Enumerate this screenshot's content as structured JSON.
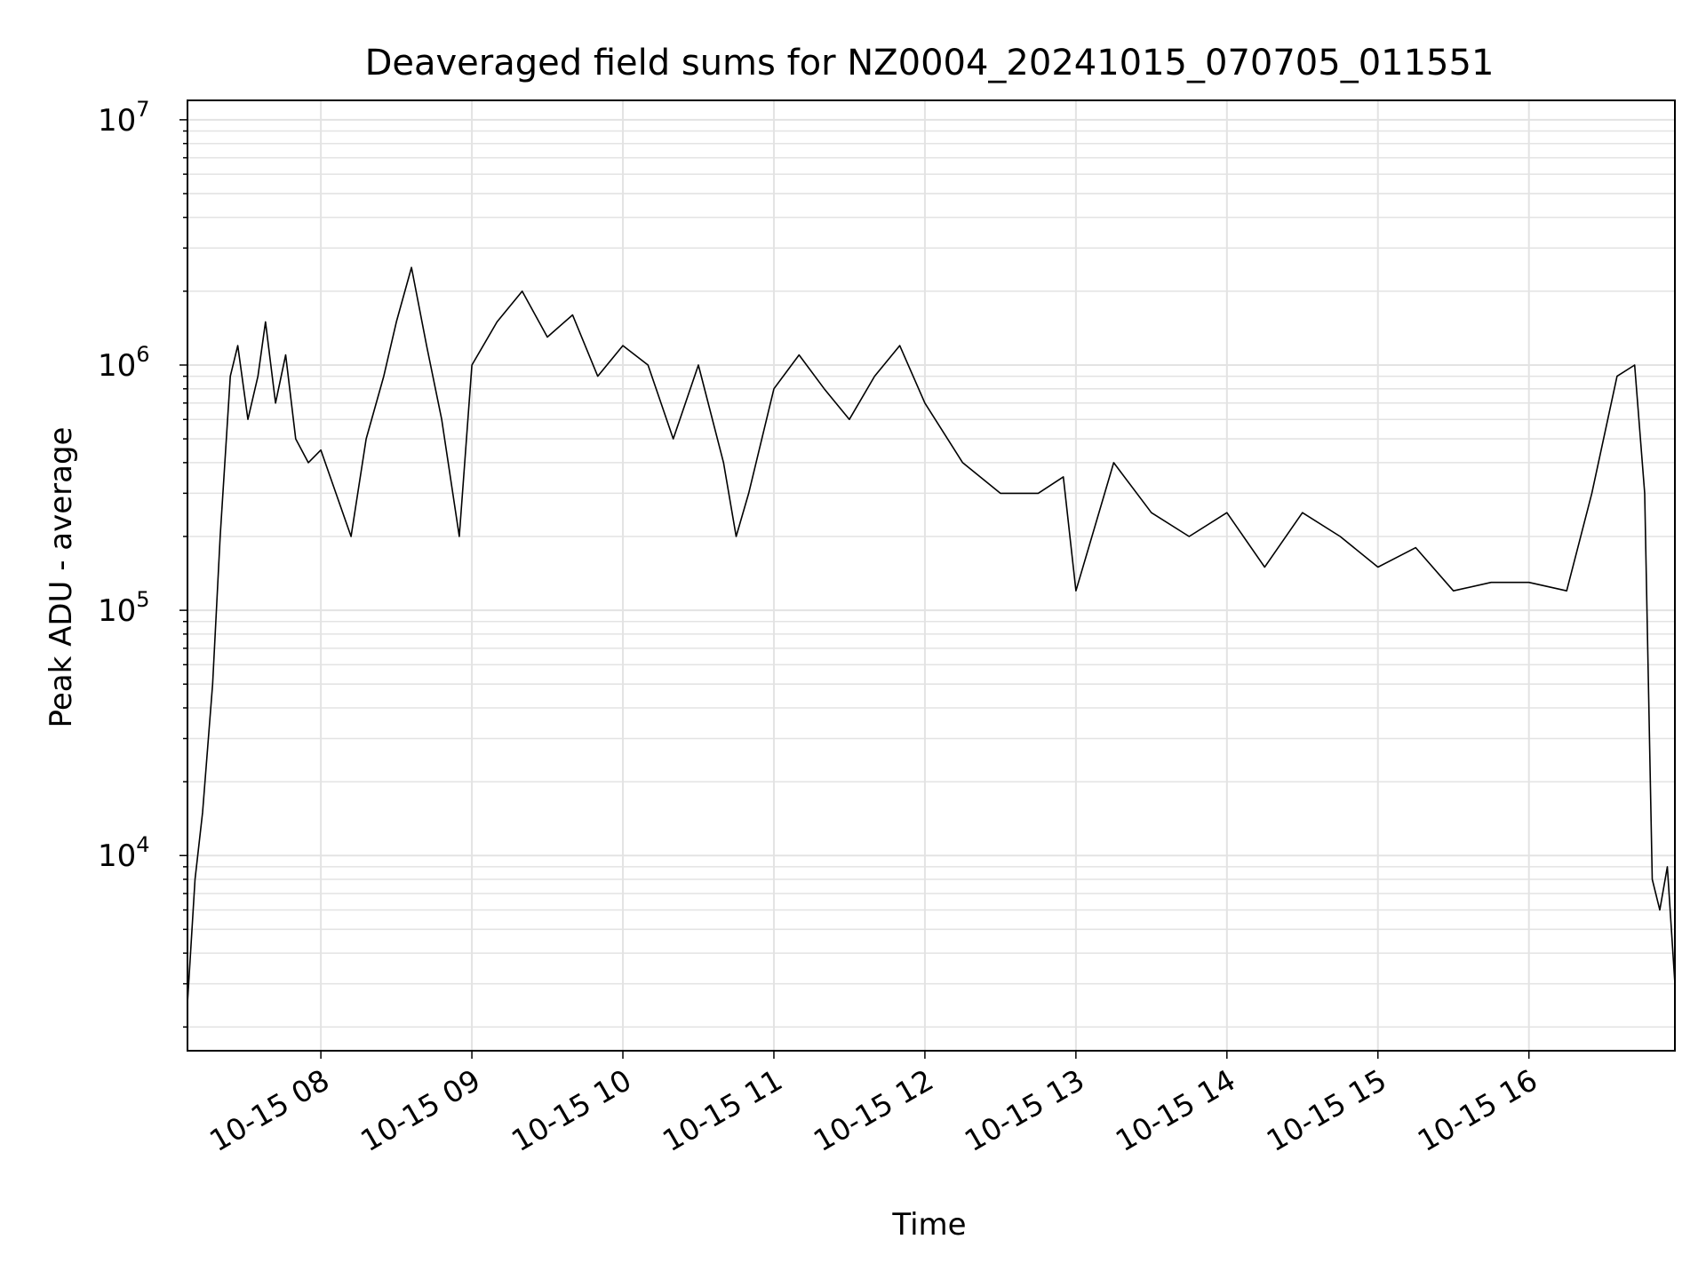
{
  "chart_data": {
    "type": "line",
    "title": "Deaveraged field sums for NZ0004_20241015_070705_011551",
    "xlabel": "Time",
    "ylabel": "Peak ADU - average",
    "yscale": "log",
    "grid": true,
    "grid_color": "#e3e3e3",
    "line_color": "#000000",
    "xlim": [
      "2024-10-15 07:07",
      "2024-10-15 16:58"
    ],
    "ylim": [
      1600,
      12000000
    ],
    "x_ticks": [
      {
        "label": "10-15 08",
        "value": "2024-10-15 08:00"
      },
      {
        "label": "10-15 09",
        "value": "2024-10-15 09:00"
      },
      {
        "label": "10-15 10",
        "value": "2024-10-15 10:00"
      },
      {
        "label": "10-15 11",
        "value": "2024-10-15 11:00"
      },
      {
        "label": "10-15 12",
        "value": "2024-10-15 12:00"
      },
      {
        "label": "10-15 13",
        "value": "2024-10-15 13:00"
      },
      {
        "label": "10-15 14",
        "value": "2024-10-15 14:00"
      },
      {
        "label": "10-15 15",
        "value": "2024-10-15 15:00"
      },
      {
        "label": "10-15 16",
        "value": "2024-10-15 16:00"
      }
    ],
    "y_ticks": [
      {
        "base": "10",
        "exp": "4",
        "value": 10000
      },
      {
        "base": "10",
        "exp": "5",
        "value": 100000
      },
      {
        "base": "10",
        "exp": "6",
        "value": 1000000
      },
      {
        "base": "10",
        "exp": "7",
        "value": 10000000
      }
    ],
    "series": [
      {
        "x": [
          "2024-10-15 07:07",
          "2024-10-15 07:10",
          "2024-10-15 07:13",
          "2024-10-15 07:17",
          "2024-10-15 07:20",
          "2024-10-15 07:24",
          "2024-10-15 07:27",
          "2024-10-15 07:31",
          "2024-10-15 07:35",
          "2024-10-15 07:38",
          "2024-10-15 07:42",
          "2024-10-15 07:46",
          "2024-10-15 07:50",
          "2024-10-15 07:55",
          "2024-10-15 08:00",
          "2024-10-15 08:06",
          "2024-10-15 08:12",
          "2024-10-15 08:18",
          "2024-10-15 08:25",
          "2024-10-15 08:30",
          "2024-10-15 08:36",
          "2024-10-15 08:42",
          "2024-10-15 08:48",
          "2024-10-15 08:55",
          "2024-10-15 09:00",
          "2024-10-15 09:10",
          "2024-10-15 09:20",
          "2024-10-15 09:30",
          "2024-10-15 09:40",
          "2024-10-15 09:50",
          "2024-10-15 10:00",
          "2024-10-15 10:10",
          "2024-10-15 10:20",
          "2024-10-15 10:30",
          "2024-10-15 10:40",
          "2024-10-15 10:45",
          "2024-10-15 10:50",
          "2024-10-15 11:00",
          "2024-10-15 11:10",
          "2024-10-15 11:20",
          "2024-10-15 11:30",
          "2024-10-15 11:40",
          "2024-10-15 11:50",
          "2024-10-15 12:00",
          "2024-10-15 12:15",
          "2024-10-15 12:30",
          "2024-10-15 12:45",
          "2024-10-15 12:55",
          "2024-10-15 13:00",
          "2024-10-15 13:15",
          "2024-10-15 13:30",
          "2024-10-15 13:45",
          "2024-10-15 14:00",
          "2024-10-15 14:15",
          "2024-10-15 14:30",
          "2024-10-15 14:45",
          "2024-10-15 15:00",
          "2024-10-15 15:15",
          "2024-10-15 15:30",
          "2024-10-15 15:45",
          "2024-10-15 16:00",
          "2024-10-15 16:15",
          "2024-10-15 16:25",
          "2024-10-15 16:35",
          "2024-10-15 16:42",
          "2024-10-15 16:46",
          "2024-10-15 16:49",
          "2024-10-15 16:52",
          "2024-10-15 16:55",
          "2024-10-15 16:58"
        ],
        "y": [
          2500,
          8000,
          15000,
          50000,
          200000,
          900000,
          1200000,
          600000,
          900000,
          1500000,
          700000,
          1100000,
          500000,
          400000,
          450000,
          300000,
          200000,
          500000,
          900000,
          1500000,
          2500000,
          1200000,
          600000,
          200000,
          1000000,
          1500000,
          2000000,
          1300000,
          1600000,
          900000,
          1200000,
          1000000,
          500000,
          1000000,
          400000,
          200000,
          300000,
          800000,
          1100000,
          800000,
          600000,
          900000,
          1200000,
          700000,
          400000,
          300000,
          300000,
          350000,
          120000,
          400000,
          250000,
          200000,
          250000,
          150000,
          250000,
          200000,
          150000,
          180000,
          120000,
          130000,
          130000,
          120000,
          300000,
          900000,
          1000000,
          300000,
          8000,
          6000,
          9000,
          3000
        ]
      }
    ]
  }
}
